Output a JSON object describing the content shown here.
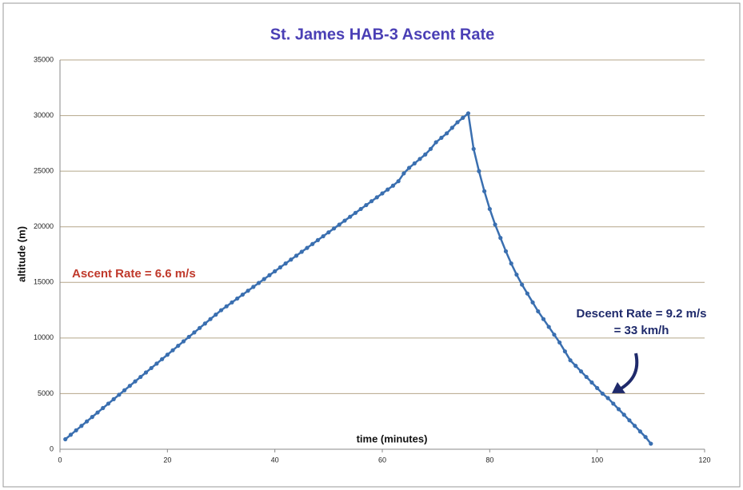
{
  "chart_data": {
    "type": "line",
    "title": "St. James HAB-3 Ascent Rate",
    "x_label": "time (minutes)",
    "y_label": "altitude (m)",
    "annotations": [
      "Ascent Rate = 6.6 m/s",
      "Descent Rate = 9.2 m/s",
      "= 33 km/h"
    ],
    "color": "#3a6fb0",
    "x": [
      1,
      2,
      3,
      4,
      5,
      6,
      7,
      8,
      9,
      10,
      11,
      12,
      13,
      14,
      15,
      16,
      17,
      18,
      19,
      20,
      21,
      22,
      23,
      24,
      25,
      26,
      27,
      28,
      29,
      30,
      31,
      32,
      33,
      34,
      35,
      36,
      37,
      38,
      39,
      40,
      41,
      42,
      43,
      44,
      45,
      46,
      47,
      48,
      49,
      50,
      51,
      52,
      53,
      54,
      55,
      56,
      57,
      58,
      59,
      60,
      61,
      62,
      63,
      64,
      65,
      66,
      67,
      68,
      69,
      70,
      71,
      72,
      73,
      74,
      75,
      76,
      77,
      78,
      79,
      80,
      81,
      82,
      83,
      84,
      85,
      86,
      87,
      88,
      89,
      90,
      91,
      92,
      93,
      94,
      95,
      96,
      97,
      98,
      99,
      100,
      101,
      102,
      103,
      104,
      105,
      106,
      107,
      108,
      109,
      110
    ],
    "values": [
      900,
      1300,
      1700,
      2100,
      2500,
      2900,
      3300,
      3700,
      4100,
      4500,
      4900,
      5300,
      5700,
      6100,
      6500,
      6900,
      7300,
      7700,
      8100,
      8500,
      8900,
      9300,
      9700,
      10100,
      10500,
      10900,
      11300,
      11700,
      12100,
      12500,
      12850,
      13200,
      13550,
      13900,
      14250,
      14600,
      14950,
      15300,
      15650,
      16000,
      16350,
      16700,
      17050,
      17400,
      17750,
      18100,
      18450,
      18800,
      19150,
      19500,
      19850,
      20200,
      20550,
      20900,
      21250,
      21600,
      21950,
      22300,
      22650,
      23000,
      23350,
      23700,
      24100,
      24800,
      25300,
      25700,
      26100,
      26500,
      27000,
      27600,
      28000,
      28400,
      28900,
      29400,
      29800,
      30200,
      27000,
      25000,
      23200,
      21600,
      20200,
      19000,
      17800,
      16700,
      15700,
      14800,
      14000,
      13200,
      12400,
      11700,
      11000,
      10300,
      9600,
      8800,
      8000,
      7500,
      7000,
      6500,
      6000,
      5500,
      5000,
      4600,
      4100,
      3600,
      3100,
      2600,
      2100,
      1600,
      1100,
      500
    ],
    "xlim": [
      0,
      120
    ],
    "xticks": [
      0,
      20,
      40,
      60,
      80,
      100,
      120
    ],
    "ylim": [
      0,
      35000
    ],
    "yticks": [
      0,
      5000,
      10000,
      15000,
      20000,
      25000,
      30000,
      35000
    ],
    "grid": true
  }
}
